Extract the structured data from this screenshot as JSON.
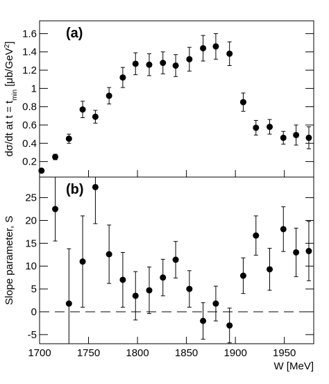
{
  "chart_data": [
    {
      "type": "scatter",
      "panel_label": "(a)",
      "ylabel": [
        "dσ/dt at t = t",
        "min",
        " [μb/GeV",
        "2",
        "]"
      ],
      "x": [
        1702,
        1716,
        1730,
        1744,
        1757,
        1771,
        1785,
        1798,
        1812,
        1826,
        1839,
        1853,
        1867,
        1880,
        1894,
        1908,
        1921,
        1935,
        1949,
        1962,
        1975
      ],
      "values": [
        0.1,
        0.25,
        0.45,
        0.77,
        0.69,
        0.92,
        1.12,
        1.27,
        1.26,
        1.28,
        1.25,
        1.32,
        1.44,
        1.46,
        1.38,
        0.85,
        0.57,
        0.58,
        0.46,
        0.49,
        0.46
      ],
      "errors": [
        0.02,
        0.03,
        0.05,
        0.09,
        0.07,
        0.09,
        0.11,
        0.12,
        0.12,
        0.12,
        0.12,
        0.13,
        0.14,
        0.14,
        0.13,
        0.1,
        0.08,
        0.08,
        0.07,
        0.11,
        0.12
      ],
      "color": "#000000",
      "xlim": [
        1700,
        1980
      ],
      "xticks": [
        1700,
        1750,
        1800,
        1850,
        1900,
        1950
      ],
      "ylim": [
        0.03,
        1.74
      ],
      "yticks": [
        0.2,
        0.4,
        0.6,
        0.8,
        1,
        1.2,
        1.4,
        1.6
      ]
    },
    {
      "type": "scatter",
      "panel_label": "(b)",
      "ylabel": [
        "Slope parameter, S"
      ],
      "xlabel": "W [MeV]",
      "x": [
        1716,
        1730,
        1744,
        1757,
        1771,
        1785,
        1798,
        1812,
        1826,
        1839,
        1853,
        1867,
        1880,
        1894,
        1908,
        1921,
        1935,
        1949,
        1962,
        1975
      ],
      "values": [
        22.5,
        1.8,
        11,
        27.3,
        12.6,
        7,
        3.5,
        4.7,
        7.5,
        11.4,
        5,
        -2,
        1.8,
        -3,
        7.9,
        16.7,
        9.3,
        18.1,
        13,
        13.3
      ],
      "errors": [
        7,
        12,
        10,
        8,
        6.4,
        6,
        5.3,
        5.1,
        4,
        4,
        4,
        4,
        3.8,
        3.8,
        3.9,
        4.3,
        4.6,
        4.9,
        5.3,
        6.5
      ],
      "color": "#000000",
      "xlim": [
        1700,
        1980
      ],
      "xticks": [
        1700,
        1750,
        1800,
        1850,
        1900,
        1950
      ],
      "ylim": [
        -7,
        29.5
      ],
      "yticks": [
        -5,
        0,
        5,
        10,
        15,
        20,
        25
      ],
      "hline": 0
    }
  ]
}
